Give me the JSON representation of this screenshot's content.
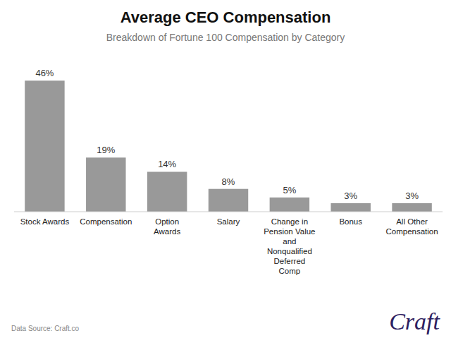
{
  "chart_data": {
    "type": "bar",
    "title": "Average CEO Compensation",
    "subtitle": "Breakdown of Fortune 100 Compensation by Category",
    "categories": [
      "Stock Awards",
      "Compensation",
      "Option\nAwards",
      "Salary",
      "Change in\nPension Value\nand\nNonqualified\nDeferred\nComp",
      "Bonus",
      "All Other\nCompensation"
    ],
    "values": [
      46,
      19,
      14,
      8,
      5,
      3,
      3
    ],
    "value_labels": [
      "46%",
      "19%",
      "14%",
      "8%",
      "5%",
      "3%",
      "3%"
    ],
    "color": "#999999",
    "ylim": [
      0,
      54
    ],
    "data_labels": true,
    "tick_labels": "x",
    "grid": false,
    "annotations": [
      "Data Source: Craft.co",
      "Craft"
    ]
  }
}
